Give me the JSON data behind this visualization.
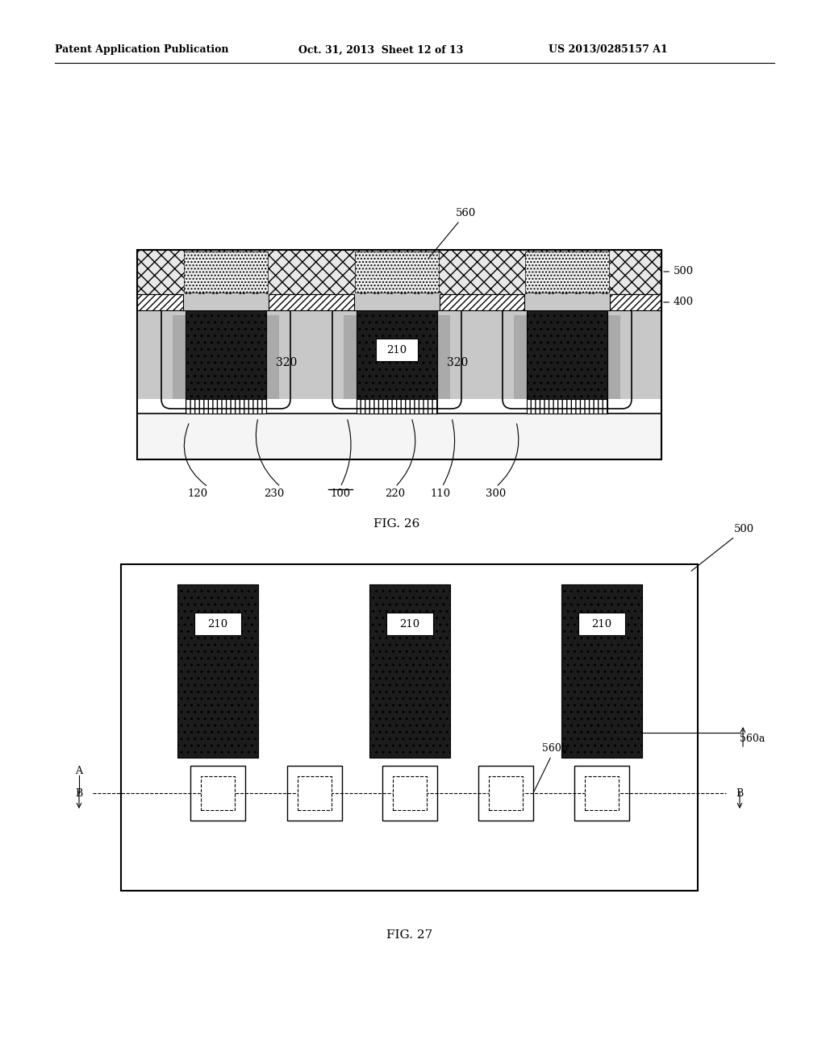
{
  "header_left": "Patent Application Publication",
  "header_center": "Oct. 31, 2013  Sheet 12 of 13",
  "header_right": "US 2013/0285157 A1",
  "fig26_caption": "FIG. 26",
  "fig27_caption": "FIG. 27",
  "background_color": "#ffffff"
}
